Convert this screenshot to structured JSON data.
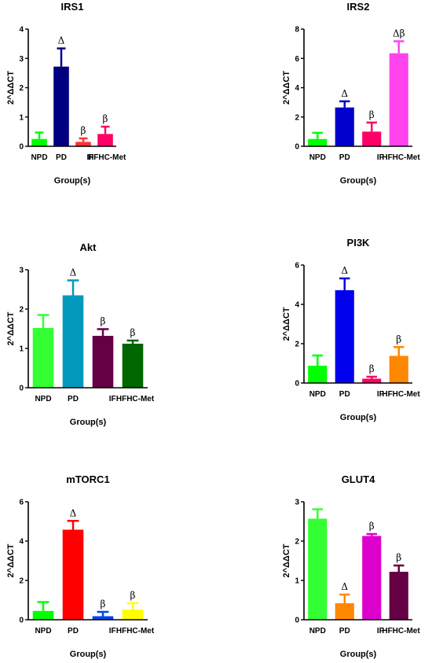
{
  "chart_data": [
    {
      "type": "bar",
      "title": "IRS1",
      "xlabel": "Group(s)",
      "ylabel": "2^ΔΔCT",
      "ylim": [
        0,
        4
      ],
      "yticks": [
        "0",
        "1",
        "2",
        "3",
        "4"
      ],
      "categories": [
        "NPD",
        "PD",
        "IF",
        "HFHC-Met"
      ],
      "values": [
        0.25,
        2.72,
        0.15,
        0.42
      ],
      "errors": [
        0.22,
        0.62,
        0.12,
        0.25
      ],
      "annotations": [
        "",
        "Δ",
        "β",
        "β"
      ],
      "colors": [
        "#00ff00",
        "#000080",
        "#ff3333",
        "#ff0066"
      ]
    },
    {
      "type": "bar",
      "title": "IRS2",
      "xlabel": "Group(s)",
      "ylabel": "2^ΔΔCT",
      "ylim": [
        0,
        8
      ],
      "yticks": [
        "0",
        "2",
        "4",
        "6",
        "8"
      ],
      "categories": [
        "NPD",
        "PD",
        "IF",
        "HFHC-Met"
      ],
      "values": [
        0.5,
        2.65,
        1.0,
        6.35
      ],
      "errors": [
        0.42,
        0.42,
        0.62,
        0.82
      ],
      "annotations": [
        "",
        "Δ",
        "β",
        "Δβ"
      ],
      "colors": [
        "#00ff00",
        "#0000cc",
        "#ff0066",
        "#ff44ee"
      ]
    },
    {
      "type": "bar",
      "title": "Akt",
      "xlabel": "Group(s)",
      "ylabel": "2^ΔΔCT",
      "ylim": [
        0,
        3
      ],
      "yticks": [
        "0",
        "1",
        "2",
        "3"
      ],
      "categories": [
        "NPD",
        "PD",
        "IF",
        "HFHC-Met"
      ],
      "values": [
        1.52,
        2.35,
        1.32,
        1.12
      ],
      "errors": [
        0.33,
        0.38,
        0.17,
        0.08
      ],
      "annotations": [
        "",
        "Δ",
        "β",
        "β"
      ],
      "colors": [
        "#33ff33",
        "#0099bb",
        "#660044",
        "#006600"
      ]
    },
    {
      "type": "bar",
      "title": "PI3K",
      "xlabel": "Group(s)",
      "ylabel": "2^ΔΔCT",
      "ylim": [
        0,
        6
      ],
      "yticks": [
        "0",
        "2",
        "4",
        "6"
      ],
      "categories": [
        "NPD",
        "PD",
        "IF",
        "HFHC-Met"
      ],
      "values": [
        0.88,
        4.72,
        0.22,
        1.38
      ],
      "errors": [
        0.52,
        0.6,
        0.1,
        0.45
      ],
      "annotations": [
        "",
        "Δ",
        "β",
        "β"
      ],
      "colors": [
        "#00ff00",
        "#0000ee",
        "#ff0066",
        "#ff8800"
      ]
    },
    {
      "type": "bar",
      "title": "mTORC1",
      "xlabel": "Group(s)",
      "ylabel": "2^ΔΔCT",
      "ylim": [
        0,
        6
      ],
      "yticks": [
        "0",
        "2",
        "4",
        "6"
      ],
      "categories": [
        "NPD",
        "PD",
        "IF",
        "HFHC-Met"
      ],
      "values": [
        0.45,
        4.58,
        0.18,
        0.52
      ],
      "errors": [
        0.45,
        0.45,
        0.22,
        0.32
      ],
      "annotations": [
        "",
        "Δ",
        "β",
        "β"
      ],
      "colors": [
        "#00ff00",
        "#ff0000",
        "#0044ee",
        "#ffff00"
      ]
    },
    {
      "type": "bar",
      "title": "GLUT4",
      "xlabel": "Group(s)",
      "ylabel": "2^ΔΔCT",
      "ylim": [
        0,
        3
      ],
      "yticks": [
        "0",
        "1",
        "2",
        "3"
      ],
      "categories": [
        "NPD",
        "PD",
        "IF",
        "HFHC-Met"
      ],
      "values": [
        2.57,
        0.42,
        2.13,
        1.22
      ],
      "errors": [
        0.24,
        0.22,
        0.05,
        0.16
      ],
      "annotations": [
        "",
        "Δ",
        "β",
        "β"
      ],
      "colors": [
        "#33ff33",
        "#ff8800",
        "#dd00cc",
        "#660044"
      ]
    }
  ]
}
